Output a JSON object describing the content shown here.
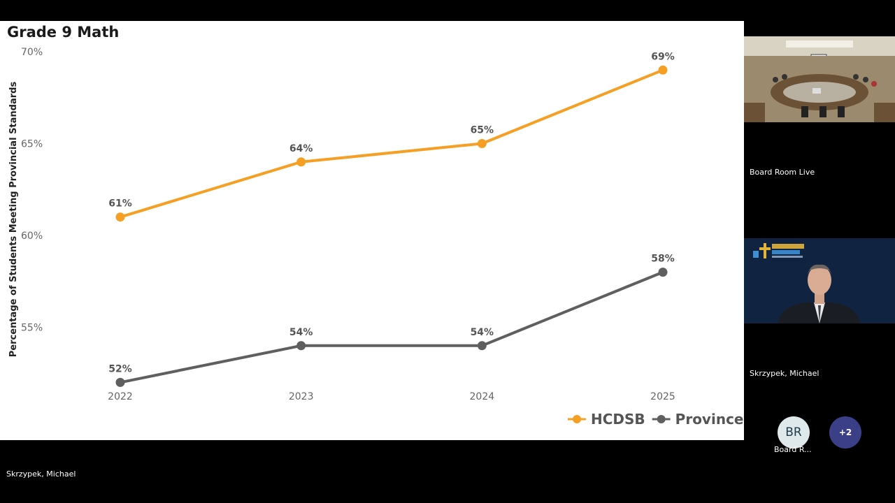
{
  "chart_data": {
    "type": "line",
    "title": "Grade 9 Math",
    "ylabel": "Percentage of Students Meeting Provincial Standards",
    "xlabel": "",
    "x": [
      "2022",
      "2023",
      "2024",
      "2025"
    ],
    "ylim": [
      50,
      70
    ],
    "yticks": [
      55,
      60,
      65,
      70
    ],
    "ytick_labels": [
      "55%",
      "60%",
      "65%",
      "70%"
    ],
    "grid": false,
    "legend": "bottom-right",
    "series": [
      {
        "name": "HCDSB",
        "color": "#f5a024",
        "values": [
          61,
          64,
          65,
          69
        ],
        "labels": [
          "61%",
          "64%",
          "65%",
          "69%"
        ]
      },
      {
        "name": "Province",
        "color": "#5f5f5f",
        "values": [
          52,
          54,
          54,
          58
        ],
        "labels": [
          "52%",
          "54%",
          "54%",
          "58%"
        ]
      }
    ]
  },
  "participants": {
    "room_tile_name": "Board Room Live",
    "speaker_tile_name": "Skrzypek, Michael",
    "bottom_name": "Skrzypek, Michael",
    "avatar_initials": "BR",
    "avatar_label": "Board R...",
    "more_count": "+2"
  },
  "icons": [
    "conference-room-video",
    "speaker-video",
    "halton-catholic-logo"
  ],
  "colors": {
    "hcdsb": "#f5a024",
    "province": "#5f5f5f",
    "avatar_bg": "#dfe9ec",
    "more_bg": "#3b3f87"
  }
}
